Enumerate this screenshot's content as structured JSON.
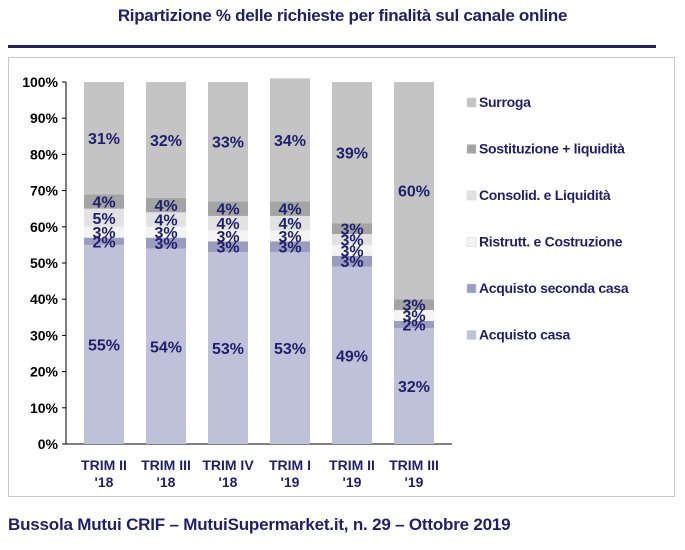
{
  "title": "Ripartizione % delle richieste per finalità sul canale online",
  "footer": "Bussola Mutui CRIF – MutuiSupermarket.it, n. 29 – Ottobre 2019",
  "chart_data": {
    "type": "bar",
    "stacked": true,
    "categories": [
      "TRIM II '18",
      "TRIM III '18",
      "TRIM IV '18",
      "TRIM I '19",
      "TRIM II '19",
      "TRIM III '19"
    ],
    "category_lines": [
      [
        "TRIM II",
        "'18"
      ],
      [
        "TRIM III",
        "'18"
      ],
      [
        "TRIM IV",
        "'18"
      ],
      [
        "TRIM I",
        "'19"
      ],
      [
        "TRIM II",
        "'19"
      ],
      [
        "TRIM III",
        "'19"
      ]
    ],
    "ylim": [
      0,
      100
    ],
    "yticks": [
      "0%",
      "10%",
      "20%",
      "30%",
      "40%",
      "50%",
      "60%",
      "70%",
      "80%",
      "90%",
      "100%"
    ],
    "grid": false,
    "legend_position": "right",
    "series": [
      {
        "name": "Acquisto casa",
        "color": "#bfc1d9",
        "values": [
          55,
          54,
          53,
          53,
          49,
          32
        ],
        "labels": [
          "55%",
          "54%",
          "53%",
          "53%",
          "49%",
          "32%"
        ]
      },
      {
        "name": "Acquisto seconda casa",
        "color": "#9a9cc0",
        "values": [
          2,
          3,
          3,
          3,
          3,
          2
        ],
        "labels": [
          "2%",
          "3%",
          "3%",
          "3%",
          "3%",
          "2%"
        ]
      },
      {
        "name": "Ristrutt. e Costruzione",
        "color": "#f4f4f4",
        "values": [
          3,
          3,
          3,
          3,
          3,
          3
        ],
        "labels": [
          "3%",
          "3%",
          "3%",
          "3%",
          "3%",
          "3%"
        ]
      },
      {
        "name": "Consolid. e Liquidità",
        "color": "#e2e2e2",
        "values": [
          5,
          4,
          4,
          4,
          3,
          0
        ],
        "labels": [
          "5%",
          "4%",
          "4%",
          "4%",
          "3%",
          ""
        ]
      },
      {
        "name": "Sostituzione + liquidità",
        "color": "#a4a4a4",
        "values": [
          4,
          4,
          4,
          4,
          3,
          3
        ],
        "labels": [
          "4%",
          "4%",
          "4%",
          "4%",
          "3%",
          "3%"
        ]
      },
      {
        "name": "Surroga",
        "color": "#c4c4c4",
        "values": [
          31,
          32,
          33,
          34,
          39,
          60
        ],
        "labels": [
          "31%",
          "32%",
          "33%",
          "34%",
          "39%",
          "60%"
        ]
      }
    ],
    "legend_order": [
      "Surroga",
      "Sostituzione + liquidità",
      "Consolid. e Liquidità",
      "Ristrutt. e Costruzione",
      "Acquisto seconda casa",
      "Acquisto casa"
    ]
  }
}
